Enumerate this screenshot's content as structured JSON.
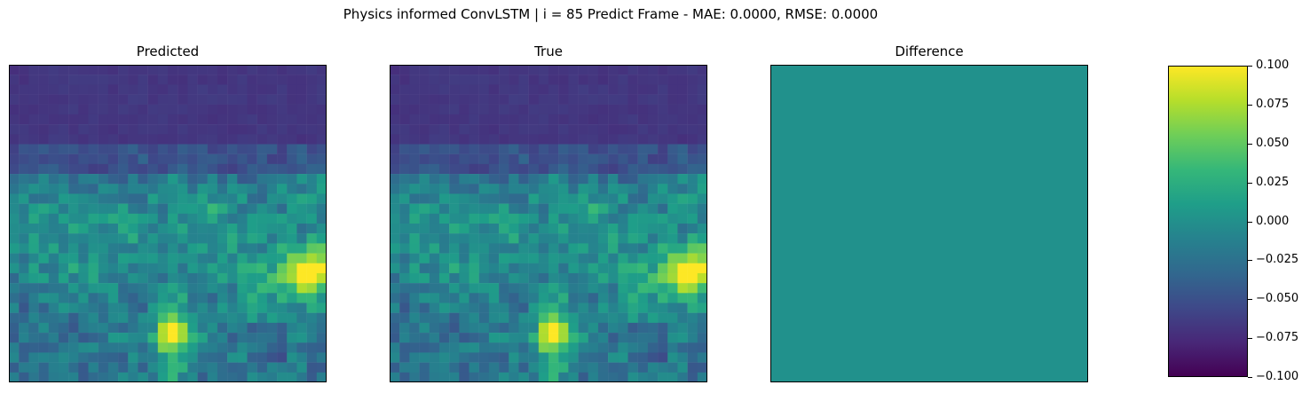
{
  "chart_data": {
    "type": "heatmap",
    "title": "Physics informed ConvLSTM | i = 85 Predict Frame - MAE: 0.0000, RMSE: 0.0000",
    "colormap": "viridis",
    "grid_size": [
      32,
      32
    ],
    "axes_ticks": false,
    "panels": [
      {
        "title": "Predicted"
      },
      {
        "title": "True"
      },
      {
        "title": "Difference",
        "uniform_value": 0.0
      }
    ],
    "colorbar": {
      "range": [
        -0.1,
        0.1
      ],
      "ticks": [
        "0.100",
        "0.075",
        "0.050",
        "0.025",
        "0.000",
        "−0.025",
        "−0.050",
        "−0.075",
        "−0.100"
      ]
    }
  },
  "colors": {
    "viridis_stops": [
      "#440154",
      "#482878",
      "#3e4989",
      "#31688e",
      "#26828e",
      "#1f9e89",
      "#35b779",
      "#6ece58",
      "#b5de2b",
      "#fde725"
    ],
    "difference_fill": "#21918c"
  }
}
